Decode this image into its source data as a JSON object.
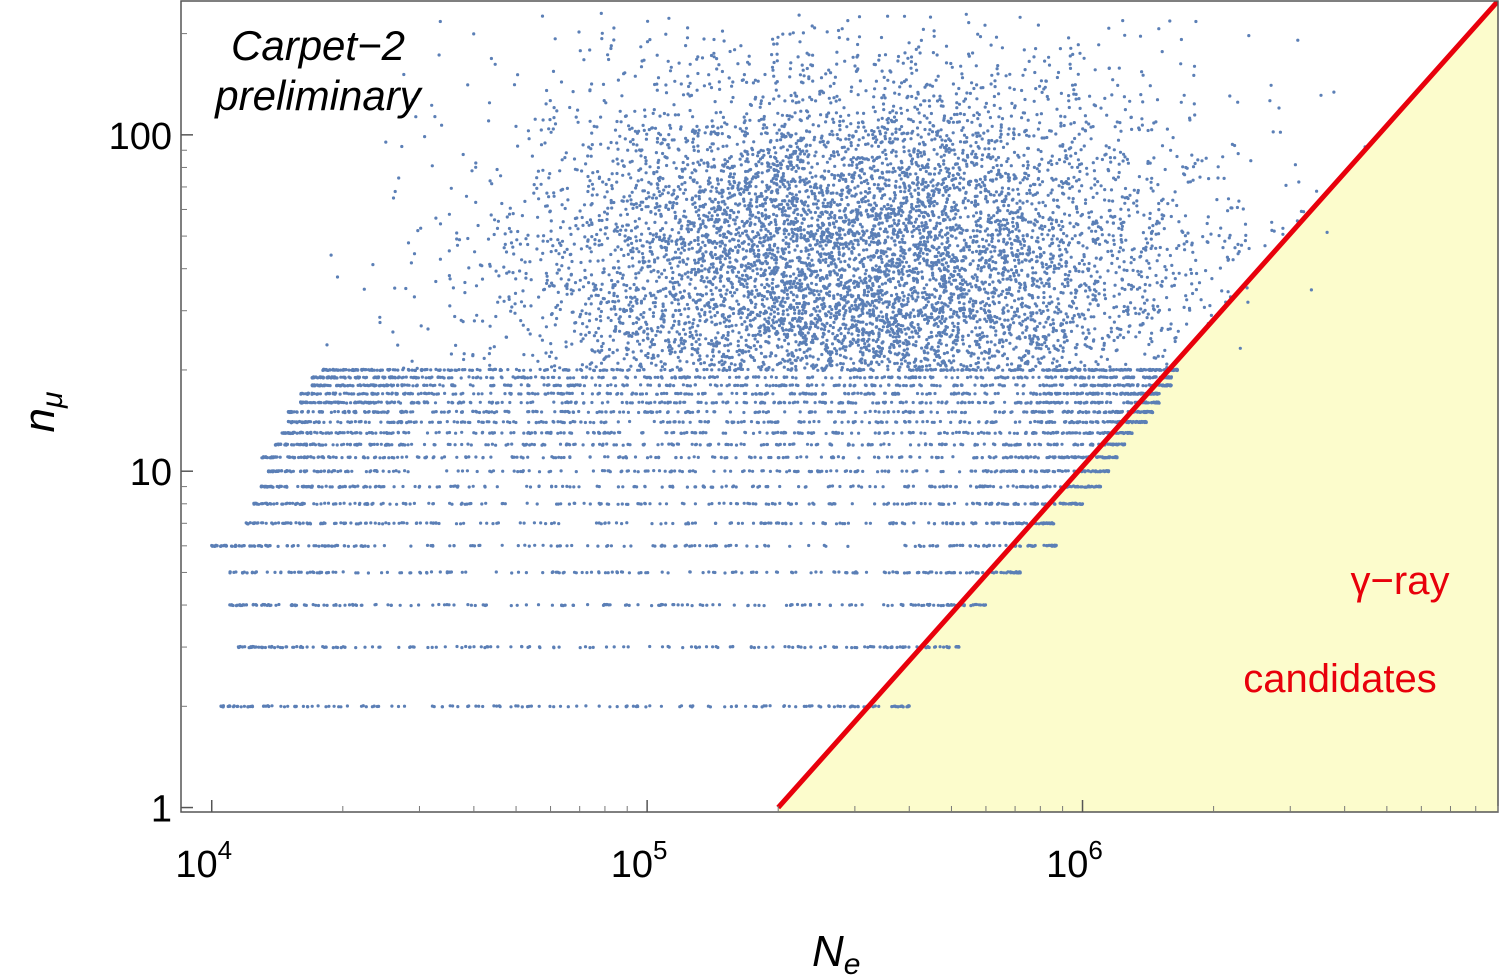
{
  "chart_data": {
    "type": "scatter",
    "title": "",
    "xlabel": {
      "main": "N",
      "sub": "e"
    },
    "ylabel": {
      "main": "n",
      "sub": "μ"
    },
    "xscale": "log",
    "yscale": "log",
    "xlim": [
      8500,
      9000000
    ],
    "ylim": [
      0.97,
      250
    ],
    "x_ticks": [
      {
        "value": 10000,
        "base": "10",
        "exp": "4"
      },
      {
        "value": 100000,
        "base": "10",
        "exp": "5"
      },
      {
        "value": 1000000,
        "base": "10",
        "exp": "6"
      }
    ],
    "y_ticks": [
      {
        "value": 1,
        "label": "1"
      },
      {
        "value": 10,
        "label": "10"
      },
      {
        "value": 100,
        "label": "100"
      }
    ],
    "grid": false,
    "annotation": {
      "line1": "Carpet−2",
      "line2": "preliminary"
    },
    "cut_line": {
      "x": [
        200000,
        9000000
      ],
      "y": [
        1,
        250
      ],
      "color": "#e8000b"
    },
    "region": {
      "label_line1": "γ−ray",
      "label_line2": "candidates",
      "fill_color": "#fcfccc",
      "text_color": "#e8000b"
    },
    "series": [
      {
        "marker_color": "#5b7fb6",
        "discrete_rows": [
          {
            "y": 2,
            "x_range": [
              10500,
              400000
            ]
          },
          {
            "y": 3,
            "x_range": [
              11500,
              520000
            ]
          },
          {
            "y": 4,
            "x_range": [
              11000,
              600000
            ]
          },
          {
            "y": 5,
            "x_range": [
              11000,
              720000
            ]
          },
          {
            "y": 6,
            "x_range": [
              10000,
              870000
            ]
          },
          {
            "y": 7,
            "x_range": [
              12000,
              860000
            ]
          },
          {
            "y": 8,
            "x_range": [
              12500,
              1000000
            ]
          },
          {
            "y": 9,
            "x_range": [
              13000,
              1100000
            ]
          },
          {
            "y": 10,
            "x_range": [
              13500,
              1150000
            ]
          },
          {
            "y": 11,
            "x_range": [
              13000,
              1200000
            ]
          },
          {
            "y": 12,
            "x_range": [
              14000,
              1250000
            ]
          },
          {
            "y": 13,
            "x_range": [
              14500,
              1300000
            ]
          },
          {
            "y": 14,
            "x_range": [
              15000,
              1400000
            ]
          },
          {
            "y": 15,
            "x_range": [
              15000,
              1450000
            ]
          },
          {
            "y": 16,
            "x_range": [
              16000,
              1500000
            ]
          },
          {
            "y": 17,
            "x_range": [
              16000,
              1500000
            ]
          },
          {
            "y": 18,
            "x_range": [
              17000,
              1600000
            ]
          },
          {
            "y": 19,
            "x_range": [
              17000,
              1600000
            ]
          },
          {
            "y": 20,
            "x_range": [
              18000,
              1650000
            ]
          }
        ],
        "continuous_cloud": {
          "y_range": [
            20,
            230
          ],
          "center": {
            "x": 300000,
            "y": 40
          },
          "spread_log10": {
            "x": 0.38,
            "y": 0.3
          }
        }
      }
    ]
  }
}
